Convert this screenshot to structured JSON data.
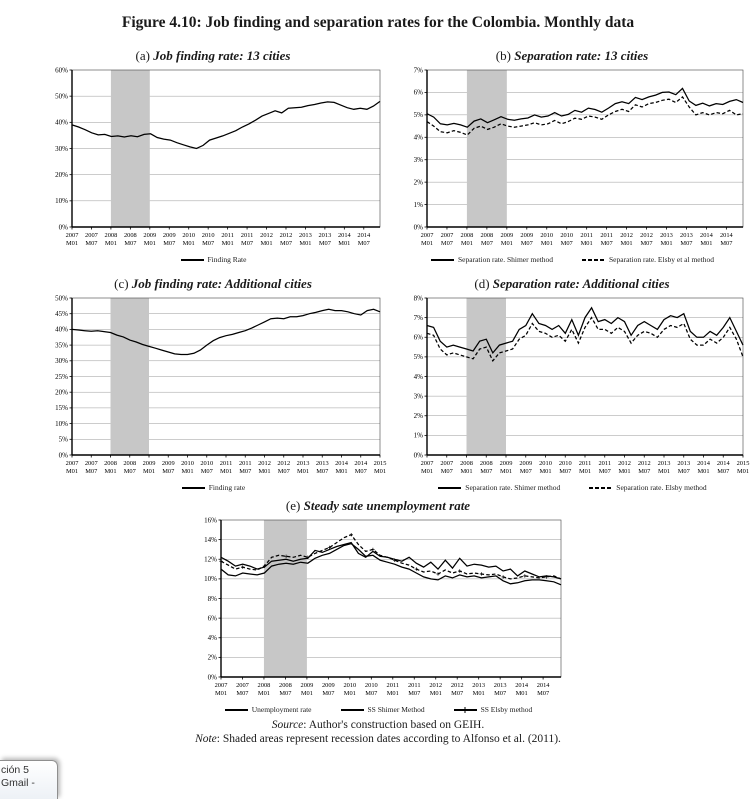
{
  "page": {
    "figure_title": "Figure 4.10: Job finding and separation rates for the Colombia. Monthly data",
    "source_label": "Source",
    "source_text": ": Author's construction based on GEIH.",
    "note_label": "Note",
    "note_text": ": Shaded areas represent recession dates according to Alfonso et al. (2011).",
    "colors": {
      "recession_band": "#c7c7c7",
      "grid": "#9a9a9a",
      "line": "#000000"
    }
  },
  "taskbar_tooltip": {
    "line1": "ción 5",
    "line2": "Gmail -"
  },
  "chart_data": [
    {
      "id": "a",
      "type": "line",
      "title_prefix": "(a)",
      "title": "Job finding rate: 13 cities",
      "ylim": [
        0,
        60
      ],
      "ytick_step": 10,
      "ytick_suffix": "%",
      "months_max": 95,
      "band_months": [
        12,
        24
      ],
      "x_ticks": [
        [
          "2007",
          "M01"
        ],
        [
          "2007",
          "M07"
        ],
        [
          "2008",
          "M01"
        ],
        [
          "2008",
          "M07"
        ],
        [
          "2009",
          "M01"
        ],
        [
          "2009",
          "M07"
        ],
        [
          "2010",
          "M01"
        ],
        [
          "2010",
          "M07"
        ],
        [
          "2011",
          "M01"
        ],
        [
          "2011",
          "M07"
        ],
        [
          "2012",
          "M01"
        ],
        [
          "2012",
          "M07"
        ],
        [
          "2013",
          "M01"
        ],
        [
          "2013",
          "M07"
        ],
        [
          "2014",
          "M01"
        ],
        [
          "2014",
          "M07"
        ]
      ],
      "series": [
        {
          "name": "Finding Rate",
          "style": "solid",
          "values": [
            39,
            38.2,
            37.2,
            36,
            35.2,
            35.4,
            34.6,
            34.8,
            34.4,
            34.9,
            34.5,
            35.4,
            35.6,
            34.2,
            33.6,
            33.2,
            32.2,
            31.4,
            30.6,
            30,
            31.2,
            33.2,
            34,
            34.8,
            35.8,
            36.8,
            38.2,
            39.4,
            40.8,
            42.4,
            43.4,
            44.4,
            43.6,
            45.4,
            45.6,
            45.8,
            46.4,
            46.8,
            47.4,
            47.8,
            47.6,
            46.6,
            45.6,
            45,
            45.4,
            45,
            46.2,
            48
          ]
        }
      ]
    },
    {
      "id": "b",
      "type": "line",
      "title_prefix": "(b)",
      "title": "Separation rate: 13 cities",
      "ylim": [
        0,
        7
      ],
      "ytick_step": 1,
      "ytick_suffix": "%",
      "months_max": 95,
      "band_months": [
        12,
        24
      ],
      "x_ticks": [
        [
          "2007",
          "M01"
        ],
        [
          "2007",
          "M07"
        ],
        [
          "2008",
          "M01"
        ],
        [
          "2008",
          "M07"
        ],
        [
          "2009",
          "M01"
        ],
        [
          "2009",
          "M07"
        ],
        [
          "2010",
          "M01"
        ],
        [
          "2010",
          "M07"
        ],
        [
          "2011",
          "M01"
        ],
        [
          "2011",
          "M07"
        ],
        [
          "2012",
          "M01"
        ],
        [
          "2012",
          "M07"
        ],
        [
          "2013",
          "M01"
        ],
        [
          "2013",
          "M07"
        ],
        [
          "2014",
          "M01"
        ],
        [
          "2014",
          "M07"
        ]
      ],
      "series": [
        {
          "name": "Separation rate. Shimer method",
          "style": "solid",
          "values": [
            5.05,
            4.9,
            4.6,
            4.55,
            4.62,
            4.55,
            4.45,
            4.72,
            4.82,
            4.65,
            4.78,
            4.92,
            4.8,
            4.76,
            4.82,
            4.86,
            5.0,
            4.9,
            4.95,
            5.1,
            4.95,
            5.02,
            5.2,
            5.12,
            5.3,
            5.24,
            5.12,
            5.3,
            5.5,
            5.58,
            5.5,
            5.78,
            5.68,
            5.8,
            5.88,
            6.0,
            6.02,
            5.9,
            6.18,
            5.62,
            5.42,
            5.52,
            5.4,
            5.5,
            5.46,
            5.6,
            5.68,
            5.55
          ]
        },
        {
          "name": "Separation rate. Elsby et al method",
          "style": "dashed",
          "values": [
            4.7,
            4.5,
            4.25,
            4.2,
            4.3,
            4.22,
            4.1,
            4.4,
            4.5,
            4.35,
            4.45,
            4.6,
            4.5,
            4.45,
            4.5,
            4.55,
            4.65,
            4.55,
            4.6,
            4.75,
            4.6,
            4.7,
            4.85,
            4.8,
            4.95,
            4.9,
            4.8,
            5.0,
            5.15,
            5.25,
            5.15,
            5.45,
            5.35,
            5.5,
            5.55,
            5.65,
            5.7,
            5.55,
            5.8,
            5.35,
            5.0,
            5.1,
            5.0,
            5.1,
            5.05,
            5.2,
            5.0,
            5.05
          ]
        }
      ]
    },
    {
      "id": "c",
      "type": "line",
      "title_prefix": "(c)",
      "title": "Job finding rate: Additional cities",
      "ylim": [
        0,
        50
      ],
      "ytick_step": 5,
      "ytick_suffix": "%",
      "months_max": 96,
      "band_months": [
        12,
        24
      ],
      "x_ticks": [
        [
          "2007",
          "M01"
        ],
        [
          "2007",
          "M07"
        ],
        [
          "2008",
          "M01"
        ],
        [
          "2008",
          "M07"
        ],
        [
          "2009",
          "M01"
        ],
        [
          "2009",
          "M07"
        ],
        [
          "2010",
          "M01"
        ],
        [
          "2010",
          "M07"
        ],
        [
          "2011",
          "M01"
        ],
        [
          "2011",
          "M07"
        ],
        [
          "2012",
          "M01"
        ],
        [
          "2012",
          "M07"
        ],
        [
          "2013",
          "M01"
        ],
        [
          "2013",
          "M07"
        ],
        [
          "2014",
          "M01"
        ],
        [
          "2014",
          "M07"
        ],
        [
          "2015",
          "M01"
        ]
      ],
      "series": [
        {
          "name": "Finding rate",
          "style": "solid",
          "values": [
            40,
            39.8,
            39.6,
            39.4,
            39.6,
            39.3,
            39,
            38.2,
            37.6,
            36.6,
            36,
            35.2,
            34.6,
            34,
            33.4,
            32.8,
            32.2,
            32,
            32,
            32.4,
            33.4,
            35,
            36.4,
            37.4,
            38,
            38.4,
            39,
            39.6,
            40.4,
            41.4,
            42.4,
            43.4,
            43.6,
            43.4,
            44,
            44,
            44.4,
            45,
            45.4,
            46,
            46.4,
            46,
            46,
            45.6,
            45,
            44.6,
            46,
            46.4,
            45.6
          ]
        }
      ]
    },
    {
      "id": "d",
      "type": "line",
      "title_prefix": "(d)",
      "title": "Separation rate: Additional cities",
      "ylim": [
        0,
        8
      ],
      "ytick_step": 1,
      "ytick_suffix": "%",
      "months_max": 96,
      "band_months": [
        12,
        24
      ],
      "x_ticks": [
        [
          "2007",
          "M01"
        ],
        [
          "2007",
          "M07"
        ],
        [
          "2008",
          "M01"
        ],
        [
          "2008",
          "M07"
        ],
        [
          "2009",
          "M01"
        ],
        [
          "2009",
          "M07"
        ],
        [
          "2010",
          "M01"
        ],
        [
          "2010",
          "M07"
        ],
        [
          "2011",
          "M01"
        ],
        [
          "2011",
          "M07"
        ],
        [
          "2012",
          "M01"
        ],
        [
          "2012",
          "M07"
        ],
        [
          "2013",
          "M01"
        ],
        [
          "2013",
          "M07"
        ],
        [
          "2014",
          "M01"
        ],
        [
          "2014",
          "M07"
        ],
        [
          "2015",
          "M01"
        ]
      ],
      "series": [
        {
          "name": "Separation rate.  Shimer method",
          "style": "solid",
          "values": [
            6.6,
            6.5,
            5.8,
            5.5,
            5.6,
            5.5,
            5.4,
            5.3,
            5.8,
            5.9,
            5.2,
            5.6,
            5.7,
            5.8,
            6.4,
            6.6,
            7.2,
            6.7,
            6.6,
            6.4,
            6.6,
            6.2,
            6.9,
            6.1,
            7.0,
            7.5,
            6.8,
            6.9,
            6.7,
            7.0,
            6.8,
            6.1,
            6.6,
            6.8,
            6.6,
            6.4,
            6.9,
            7.1,
            7.0,
            7.2,
            6.3,
            6.0,
            6.0,
            6.3,
            6.1,
            6.5,
            7.0,
            6.3,
            5.6
          ]
        },
        {
          "name": "Separation rate. Elsby method",
          "style": "dashed",
          "values": [
            6.2,
            6.1,
            5.4,
            5.1,
            5.2,
            5.1,
            5.0,
            4.9,
            5.4,
            5.5,
            4.8,
            5.2,
            5.3,
            5.4,
            5.9,
            6.1,
            6.7,
            6.3,
            6.2,
            6.0,
            6.1,
            5.8,
            6.4,
            5.7,
            6.5,
            7.0,
            6.4,
            6.4,
            6.2,
            6.5,
            6.3,
            5.7,
            6.1,
            6.3,
            6.2,
            6.0,
            6.4,
            6.6,
            6.5,
            6.7,
            5.9,
            5.6,
            5.6,
            5.9,
            5.7,
            6.0,
            6.5,
            5.9,
            5.0
          ]
        }
      ]
    },
    {
      "id": "e",
      "type": "line",
      "title_prefix": "(e)",
      "title": "Steady sate unemployment rate",
      "ylim": [
        0,
        16
      ],
      "ytick_step": 2,
      "ytick_suffix": "%",
      "months_max": 95,
      "band_months": [
        12,
        24
      ],
      "x_ticks": [
        [
          "2007",
          "M01"
        ],
        [
          "2007",
          "M07"
        ],
        [
          "2008",
          "M01"
        ],
        [
          "2008",
          "M07"
        ],
        [
          "2009",
          "M01"
        ],
        [
          "2009",
          "M07"
        ],
        [
          "2010",
          "M01"
        ],
        [
          "2010",
          "M07"
        ],
        [
          "2011",
          "M01"
        ],
        [
          "2011",
          "M07"
        ],
        [
          "2012",
          "M01"
        ],
        [
          "2012",
          "M07"
        ],
        [
          "2013",
          "M01"
        ],
        [
          "2013",
          "M07"
        ],
        [
          "2014",
          "M01"
        ],
        [
          "2014",
          "M07"
        ]
      ],
      "series": [
        {
          "name": "Unemployment rate",
          "style": "solid",
          "values": [
            12.2,
            11.8,
            11.3,
            11.5,
            11.3,
            11.0,
            11.2,
            11.8,
            11.9,
            12.0,
            11.8,
            12.0,
            12.1,
            12.9,
            12.7,
            13.0,
            13.3,
            13.5,
            13.7,
            12.6,
            12.2,
            12.8,
            12.3,
            12.2,
            12.0,
            11.8,
            12.2,
            11.6,
            11.2,
            11.7,
            11.0,
            11.9,
            11.1,
            12.1,
            11.3,
            11.5,
            11.4,
            11.2,
            11.3,
            10.8,
            11.0,
            10.3,
            10.8,
            10.5,
            10.2,
            10.3,
            10.2,
            10.0
          ]
        },
        {
          "name": "SS Shimer Method",
          "style": "solid",
          "values": [
            11.0,
            10.4,
            10.3,
            10.6,
            10.5,
            10.4,
            10.6,
            11.3,
            11.5,
            11.6,
            11.5,
            11.7,
            11.6,
            12.1,
            12.4,
            12.6,
            13.0,
            13.4,
            13.6,
            13.0,
            12.3,
            12.4,
            11.9,
            11.7,
            11.5,
            11.2,
            11.0,
            10.6,
            10.2,
            10.0,
            9.9,
            10.3,
            10.1,
            10.4,
            10.2,
            10.3,
            10.1,
            10.2,
            10.3,
            9.8,
            9.5,
            9.6,
            9.8,
            9.9,
            9.9,
            9.8,
            9.7,
            9.4
          ]
        },
        {
          "name": "SS Elsby method",
          "style": "plus",
          "values": [
            11.8,
            11.4,
            11.0,
            11.2,
            11.0,
            10.9,
            11.3,
            12.2,
            12.4,
            12.3,
            12.2,
            12.4,
            12.2,
            12.6,
            12.9,
            13.2,
            13.7,
            14.2,
            14.5,
            13.5,
            12.8,
            13.0,
            12.4,
            12.2,
            11.9,
            11.6,
            11.4,
            11.0,
            10.7,
            10.8,
            10.5,
            10.9,
            10.6,
            10.8,
            10.5,
            10.6,
            10.5,
            10.4,
            10.5,
            10.2,
            10.0,
            10.1,
            10.3,
            10.2,
            10.1,
            10.2,
            10.3,
            10.0
          ]
        }
      ]
    }
  ]
}
